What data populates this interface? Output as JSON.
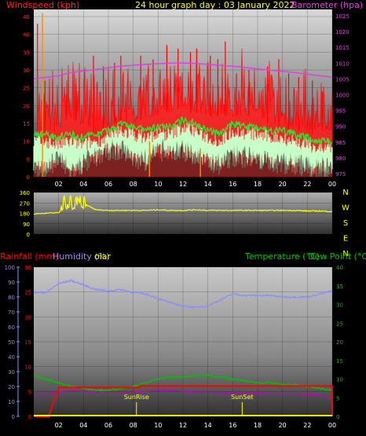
{
  "colors": {
    "wind": "#ff2020",
    "gust": "#ff0000",
    "wind_avg": "#30e030",
    "wind_lull": "#c8ffc8",
    "barometer": "#e040e0",
    "direction": "#ffff00",
    "rain": "#ff0000",
    "humidity": "#8c8cff",
    "solar": "#ffff00",
    "temperature": "#00c000",
    "dewpoint": "#c000c0",
    "rate_marker": "#ff8c00"
  },
  "chart_data": [
    {
      "type": "line",
      "title": "24 hour graph day : 03 January 2022",
      "left_axis_label": "Windspeed (kph)",
      "right_axis_label": "Barometer (hpa)",
      "left_ticks": [
        "0",
        "5",
        "10",
        "15",
        "20",
        "25",
        "30",
        "35",
        "40",
        "45"
      ],
      "left_range": [
        0,
        47
      ],
      "right_ticks": [
        "975",
        "980",
        "985",
        "990",
        "995",
        "1000",
        "1005",
        "1010",
        "1015",
        "1020",
        "1025"
      ],
      "right_range": [
        974,
        1027
      ],
      "hours": [
        "02",
        "04",
        "06",
        "08",
        "10",
        "12",
        "14",
        "16",
        "18",
        "20",
        "22",
        "00"
      ],
      "x_range_hours": [
        0,
        24
      ],
      "wind_gust_baseline": [
        0,
        12,
        13,
        16,
        14,
        12,
        13,
        15,
        15,
        16,
        17,
        18,
        19,
        18,
        17,
        17,
        17,
        17,
        16,
        15,
        14,
        13,
        12,
        13,
        12
      ],
      "wind_avg": [
        12,
        12,
        11,
        12,
        11,
        12,
        13,
        15,
        14,
        13,
        14,
        14,
        16,
        15,
        13,
        12,
        15,
        14,
        14,
        13,
        13,
        12,
        11,
        10,
        10
      ],
      "wind_lull": [
        3,
        3,
        5,
        2,
        4,
        6,
        8,
        8,
        6,
        5,
        8,
        7,
        8,
        6,
        5,
        4,
        6,
        6,
        5,
        5,
        4,
        4,
        3,
        3,
        3
      ],
      "wind_spikes": [
        [
          0.3,
          43
        ],
        [
          0.9,
          27
        ],
        [
          2.6,
          23
        ],
        [
          3.4,
          26
        ],
        [
          4.8,
          34
        ],
        [
          5.6,
          31
        ],
        [
          6.5,
          32
        ],
        [
          7.0,
          34
        ],
        [
          8.6,
          34
        ],
        [
          9.6,
          33
        ],
        [
          10.7,
          37
        ],
        [
          11.6,
          36
        ],
        [
          12.6,
          35
        ],
        [
          13.1,
          36
        ],
        [
          14.2,
          34
        ],
        [
          14.8,
          33
        ],
        [
          15.4,
          38
        ],
        [
          16.3,
          29
        ],
        [
          17.3,
          30
        ],
        [
          18.8,
          31
        ],
        [
          19.7,
          33
        ],
        [
          20.5,
          29
        ],
        [
          21.3,
          28
        ],
        [
          22.4,
          27
        ],
        [
          23.2,
          24
        ]
      ],
      "barometer": [
        1005,
        1005.5,
        1006,
        1007,
        1007.5,
        1008,
        1008.5,
        1009,
        1009.3,
        1009.6,
        1009.8,
        1010,
        1010,
        1009.9,
        1009.6,
        1009.3,
        1009,
        1008.6,
        1008.2,
        1007.8,
        1007.4,
        1007,
        1006.5,
        1006,
        1005.5
      ]
    },
    {
      "type": "line",
      "left_ticks": [
        "0",
        "90",
        "180",
        "270",
        "360"
      ],
      "left_range": [
        0,
        360
      ],
      "right_labels": [
        "N",
        "W",
        "S",
        "E",
        "N"
      ],
      "x_range_hours": [
        0,
        24
      ],
      "direction": [
        175,
        180,
        185,
        270,
        265,
        210,
        205,
        205,
        205,
        205,
        210,
        205,
        205,
        210,
        205,
        205,
        205,
        205,
        205,
        205,
        205,
        205,
        200,
        200,
        195
      ]
    },
    {
      "type": "line",
      "legend": [
        "Rainfall (mm)",
        "Humidity (%)",
        "Solar",
        "Temperature (°C)",
        "Dew Point (°C)"
      ],
      "legend_display": {
        "rain": "Rainfall (mm)",
        "humidity": "Humidity (%)",
        "solar": "olar",
        "temperature": "Temperature (°C)",
        "dewpoint": "Dew Point (°C)"
      },
      "hum_ticks": [
        "0",
        "10",
        "20",
        "30",
        "40",
        "50",
        "60",
        "70",
        "80",
        "90",
        "100"
      ],
      "hum_range": [
        0,
        100
      ],
      "rain_ticks": [
        "0",
        "5",
        "10",
        "15",
        "20",
        "25",
        "30"
      ],
      "rain_range": [
        0,
        30
      ],
      "temp_ticks": [
        "0",
        "5",
        "10",
        "15",
        "20",
        "25",
        "30",
        "35",
        "40"
      ],
      "temp_range": [
        0,
        40
      ],
      "hours": [
        "02",
        "04",
        "06",
        "08",
        "10",
        "12",
        "14",
        "16",
        "18",
        "20",
        "22",
        "00"
      ],
      "x_range_hours": [
        0,
        24
      ],
      "humidity": [
        83,
        83,
        89,
        91,
        88,
        85,
        84,
        85,
        83,
        82,
        79,
        76,
        74,
        73,
        74,
        78,
        82,
        81,
        81,
        81,
        80,
        80,
        80,
        82,
        84
      ],
      "temperature": [
        11,
        10,
        9,
        8,
        7.5,
        7,
        7,
        7.5,
        8,
        9,
        10,
        10.5,
        10.5,
        11,
        11,
        10.5,
        10,
        9.5,
        9,
        9,
        8.5,
        8.5,
        8,
        7.5,
        7
      ],
      "dewpoint": [
        6,
        6,
        6.5,
        7,
        6.8,
        6.5,
        6.5,
        6.3,
        6.5,
        6.8,
        7,
        7,
        6.8,
        6.5,
        6.5,
        6.3,
        6.3,
        6.3,
        6.2,
        6,
        6,
        6,
        5.8,
        5.7,
        5
      ],
      "rainfall_steps": [
        [
          0,
          0
        ],
        [
          1.2,
          0
        ],
        [
          2.0,
          5.8
        ],
        [
          8.5,
          5.8
        ],
        [
          8.5,
          6.1
        ],
        [
          24,
          6.1
        ]
      ],
      "annotations": [
        {
          "hour": 7.5,
          "label": "SunRise"
        },
        {
          "hour": 16,
          "label": "SunSet"
        }
      ]
    }
  ]
}
